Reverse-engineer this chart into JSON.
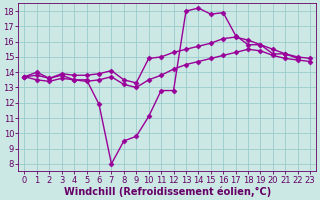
{
  "title": "",
  "xlabel": "Windchill (Refroidissement éolien,°C)",
  "ylabel": "",
  "xlim": [
    -0.5,
    23.5
  ],
  "ylim": [
    7.5,
    18.5
  ],
  "xticks": [
    0,
    1,
    2,
    3,
    4,
    5,
    6,
    7,
    8,
    9,
    10,
    11,
    12,
    13,
    14,
    15,
    16,
    17,
    18,
    19,
    20,
    21,
    22,
    23
  ],
  "yticks": [
    8,
    9,
    10,
    11,
    12,
    13,
    14,
    15,
    16,
    17,
    18
  ],
  "bg_color": "#cce8e4",
  "line_color": "#990099",
  "grid_color": "#99cccc",
  "series": [
    {
      "x": [
        0,
        1,
        2,
        3,
        4,
        5,
        6,
        7,
        8,
        9,
        10,
        11,
        12,
        13,
        14,
        15,
        16,
        17,
        18,
        19,
        20,
        21,
        22
      ],
      "y": [
        13.7,
        14.0,
        13.6,
        13.8,
        13.5,
        13.5,
        11.9,
        8.0,
        9.5,
        9.8,
        11.1,
        12.8,
        12.8,
        18.0,
        18.2,
        17.8,
        17.9,
        16.4,
        15.8,
        15.8,
        15.2,
        15.2,
        14.9
      ]
    },
    {
      "x": [
        0,
        1,
        2,
        3,
        4,
        5,
        6,
        7,
        8,
        9,
        10,
        11,
        12,
        13,
        14,
        15,
        16,
        17,
        18,
        19,
        20,
        21,
        22,
        23
      ],
      "y": [
        13.7,
        13.8,
        13.6,
        13.9,
        13.8,
        13.8,
        13.9,
        14.1,
        13.5,
        13.3,
        14.9,
        15.0,
        15.3,
        15.5,
        15.7,
        15.9,
        16.2,
        16.3,
        16.1,
        15.8,
        15.5,
        15.2,
        15.0,
        14.9
      ]
    },
    {
      "x": [
        0,
        1,
        2,
        3,
        4,
        5,
        6,
        7,
        8,
        9,
        10,
        11,
        12,
        13,
        14,
        15,
        16,
        17,
        18,
        19,
        20,
        21,
        22,
        23
      ],
      "y": [
        13.7,
        13.5,
        13.4,
        13.6,
        13.5,
        13.4,
        13.5,
        13.7,
        13.2,
        13.0,
        13.5,
        13.8,
        14.2,
        14.5,
        14.7,
        14.9,
        15.1,
        15.3,
        15.5,
        15.4,
        15.1,
        14.9,
        14.8,
        14.7
      ]
    }
  ],
  "marker": "D",
  "markersize": 2.5,
  "linewidth": 1.0,
  "font_color": "#660066",
  "tick_fontsize": 6,
  "label_fontsize": 7
}
